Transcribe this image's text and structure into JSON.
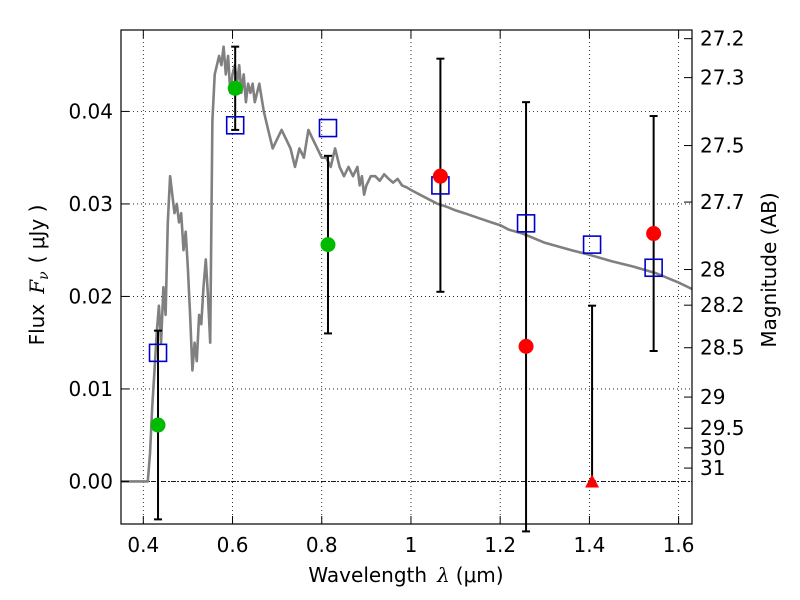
{
  "chart_data": {
    "type": "scatter",
    "xlabel": "Wavelength",
    "xlabel_symbol": "λ",
    "xlabel_unit": "(μm)",
    "ylabel": "Flux",
    "ylabel_symbol": "F",
    "ylabel_subscript": "ν",
    "ylabel_unit": "( μJy )",
    "y2label": "Magnitude (AB)",
    "xlim": [
      0.35,
      1.63
    ],
    "ylim": [
      -0.0046,
      0.0488
    ],
    "grid": true,
    "x_ticks": [
      {
        "value": 0.4,
        "label": "0.4"
      },
      {
        "value": 0.6,
        "label": "0.6"
      },
      {
        "value": 0.8,
        "label": "0.8"
      },
      {
        "value": 1.0,
        "label": "1"
      },
      {
        "value": 1.2,
        "label": "1.2"
      },
      {
        "value": 1.4,
        "label": "1.4"
      },
      {
        "value": 1.6,
        "label": "1.6"
      }
    ],
    "y_ticks": [
      {
        "value": 0.0,
        "label": "0.00"
      },
      {
        "value": 0.01,
        "label": "0.01"
      },
      {
        "value": 0.02,
        "label": "0.02"
      },
      {
        "value": 0.03,
        "label": "0.03"
      },
      {
        "value": 0.04,
        "label": "0.04"
      }
    ],
    "mag_ticks": [
      {
        "mag": 27.2,
        "label": "27.2"
      },
      {
        "mag": 27.3,
        "label": "27.3"
      },
      {
        "mag": 27.5,
        "label": "27.5"
      },
      {
        "mag": 27.7,
        "label": "27.7"
      },
      {
        "mag": 28.0,
        "label": "28"
      },
      {
        "mag": 28.2,
        "label": "28.2"
      },
      {
        "mag": 28.5,
        "label": "28.5"
      },
      {
        "mag": 29.0,
        "label": "29"
      },
      {
        "mag": 29.5,
        "label": "29.5"
      },
      {
        "mag": 30.0,
        "label": "30"
      },
      {
        "mag": 31.0,
        "label": "31"
      }
    ],
    "colors": {
      "model": "#808080",
      "model_flux": "#0000cc",
      "detected_green": "#00bb00",
      "detected_red": "#ff0000",
      "errorbar": "#000000"
    },
    "model_sed": {
      "name": "model spectrum",
      "x": [
        0.35,
        0.4,
        0.41,
        0.415,
        0.42,
        0.425,
        0.43,
        0.435,
        0.44,
        0.445,
        0.45,
        0.455,
        0.46,
        0.465,
        0.47,
        0.475,
        0.48,
        0.485,
        0.49,
        0.495,
        0.5,
        0.505,
        0.51,
        0.515,
        0.52,
        0.525,
        0.53,
        0.535,
        0.54,
        0.545,
        0.55,
        0.555,
        0.56,
        0.565,
        0.57,
        0.575,
        0.58,
        0.585,
        0.59,
        0.595,
        0.6,
        0.605,
        0.61,
        0.615,
        0.62,
        0.625,
        0.63,
        0.635,
        0.64,
        0.645,
        0.65,
        0.66,
        0.67,
        0.68,
        0.69,
        0.7,
        0.71,
        0.72,
        0.73,
        0.74,
        0.75,
        0.76,
        0.77,
        0.78,
        0.79,
        0.8,
        0.81,
        0.82,
        0.83,
        0.84,
        0.85,
        0.86,
        0.87,
        0.88,
        0.885,
        0.89,
        0.895,
        0.9,
        0.91,
        0.92,
        0.93,
        0.94,
        0.95,
        0.96,
        0.97,
        0.98,
        0.99,
        1.0,
        1.02,
        1.04,
        1.06,
        1.08,
        1.1,
        1.12,
        1.15,
        1.18,
        1.2,
        1.22,
        1.25,
        1.28,
        1.3,
        1.33,
        1.36,
        1.4,
        1.45,
        1.5,
        1.55,
        1.6,
        1.63
      ],
      "y": [
        0.0,
        0.0,
        0.0,
        0.003,
        0.008,
        0.012,
        0.016,
        0.019,
        0.015,
        0.021,
        0.018,
        0.028,
        0.033,
        0.031,
        0.029,
        0.03,
        0.028,
        0.029,
        0.025,
        0.027,
        0.023,
        0.018,
        0.012,
        0.015,
        0.013,
        0.018,
        0.017,
        0.021,
        0.024,
        0.02,
        0.015,
        0.039,
        0.044,
        0.045,
        0.046,
        0.045,
        0.047,
        0.044,
        0.046,
        0.042,
        0.044,
        0.045,
        0.043,
        0.045,
        0.042,
        0.044,
        0.041,
        0.043,
        0.042,
        0.043,
        0.041,
        0.043,
        0.04,
        0.038,
        0.036,
        0.037,
        0.038,
        0.037,
        0.036,
        0.034,
        0.036,
        0.035,
        0.038,
        0.037,
        0.036,
        0.035,
        0.035,
        0.034,
        0.036,
        0.034,
        0.033,
        0.034,
        0.033,
        0.034,
        0.032,
        0.033,
        0.031,
        0.032,
        0.033,
        0.033,
        0.0325,
        0.0332,
        0.0327,
        0.0323,
        0.0327,
        0.032,
        0.0318,
        0.0315,
        0.031,
        0.0305,
        0.03,
        0.0297,
        0.0293,
        0.029,
        0.0285,
        0.028,
        0.0277,
        0.0272,
        0.0268,
        0.0262,
        0.0258,
        0.0254,
        0.025,
        0.0245,
        0.0238,
        0.0232,
        0.0225,
        0.0215,
        0.0208
      ]
    },
    "observed_detections": [
      {
        "x": 0.433,
        "y": 0.0061,
        "color": "green",
        "yerr_lo": 0.0102,
        "yerr_hi": 0.0102
      },
      {
        "x": 0.606,
        "y": 0.0425,
        "color": "green",
        "yerr_lo": 0.0045,
        "yerr_hi": 0.0045
      },
      {
        "x": 0.814,
        "y": 0.0256,
        "color": "green",
        "yerr_lo": 0.0096,
        "yerr_hi": 0.0096
      },
      {
        "x": 1.066,
        "y": 0.033,
        "color": "red",
        "yerr_lo": 0.0125,
        "yerr_hi": 0.0127
      },
      {
        "x": 1.258,
        "y": 0.0146,
        "color": "red",
        "yerr_lo": 0.02,
        "yerr_hi": 0.0264
      },
      {
        "x": 1.544,
        "y": 0.0268,
        "color": "red",
        "yerr_lo": 0.0127,
        "yerr_hi": 0.0127
      }
    ],
    "upper_limits": [
      {
        "x": 1.406,
        "y": 0.0,
        "color": "red",
        "yerr_hi": 0.019
      }
    ],
    "model_band_flux": {
      "name": "model band flux",
      "x": [
        0.433,
        0.606,
        0.814,
        1.066,
        1.258,
        1.406,
        1.544
      ],
      "y": [
        0.0139,
        0.0385,
        0.0382,
        0.032,
        0.0279,
        0.0256,
        0.0231
      ]
    }
  }
}
